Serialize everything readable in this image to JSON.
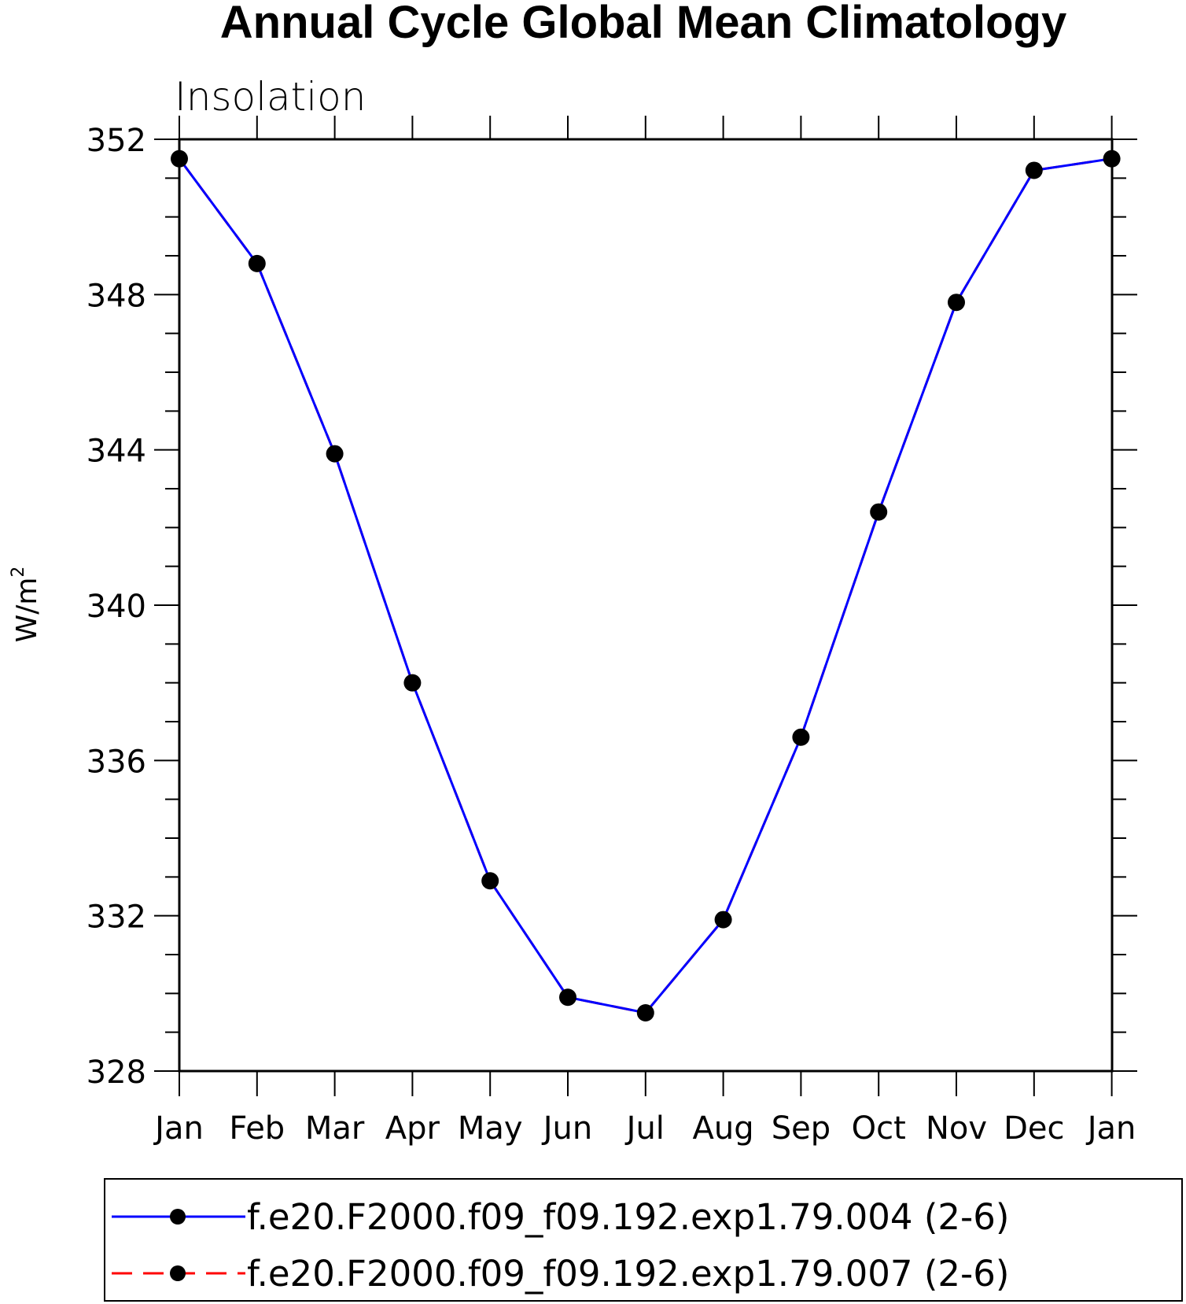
{
  "chart_data": {
    "type": "line",
    "title": "Annual Cycle Global Mean Climatology",
    "subtitle": "Insolation",
    "ylabel": "W/m",
    "ylabel_sup": "2",
    "ylim": [
      328,
      352
    ],
    "yticks": [
      "328",
      "332",
      "336",
      "340",
      "344",
      "348",
      "352"
    ],
    "categories": [
      "Jan",
      "Feb",
      "Mar",
      "Apr",
      "May",
      "Jun",
      "Jul",
      "Aug",
      "Sep",
      "Oct",
      "Nov",
      "Dec",
      "Jan"
    ],
    "series": [
      {
        "name": "f.e20.F2000.f09_f09.192.exp1.79.004 (2-6)",
        "color": "#0000ff",
        "line_style": "solid",
        "values": [
          351.5,
          348.8,
          343.9,
          338.0,
          332.9,
          329.9,
          329.5,
          331.9,
          336.6,
          342.4,
          347.8,
          351.2,
          351.5
        ]
      },
      {
        "name": "f.e20.F2000.f09_f09.192.exp1.79.007 (2-6)",
        "color": "#ff0000",
        "line_style": "dashed",
        "values": [
          351.5,
          348.8,
          343.9,
          338.0,
          332.9,
          329.9,
          329.5,
          331.9,
          336.6,
          342.4,
          347.8,
          351.2,
          351.5
        ]
      }
    ],
    "marker_color": "#000000",
    "grid": false,
    "legend_position": "bottom"
  }
}
